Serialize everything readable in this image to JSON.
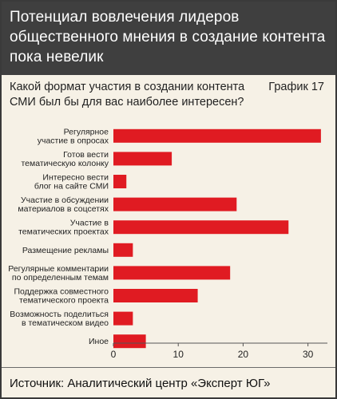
{
  "header": {
    "title": "Потенциал вовлечения лидеров общественного мнения в создание контента пока невелик"
  },
  "question": "Какой формат участия в создании контента СМИ был бы для вас наиболее интересен?",
  "chart_label": "График 17",
  "source": "Источник: Аналитический центр «Эксперт ЮГ»",
  "colors": {
    "bar": "#e01b22",
    "header_bg": "#3f3f3f",
    "panel_bg": "#f6f1e6"
  },
  "chart_data": {
    "type": "bar",
    "orientation": "horizontal",
    "categories": [
      [
        "Регулярное",
        "участие в опросах"
      ],
      [
        "Готов вести",
        "тематическую колонку"
      ],
      [
        "Интересно вести",
        "блог на сайте СМИ"
      ],
      [
        "Участие в обсуждении",
        "материалов в соцсетях"
      ],
      [
        "Участие в",
        "тематических проектах"
      ],
      [
        "Размещение рекламы"
      ],
      [
        "Регулярные комментарии",
        "по определенным темам"
      ],
      [
        "Поддержка совместного",
        "тематического проекта"
      ],
      [
        "Возможность поделиться",
        "в тематическом видео"
      ],
      [
        "Иное"
      ]
    ],
    "values": [
      32,
      9,
      2,
      19,
      27,
      3,
      18,
      13,
      3,
      5
    ],
    "xlim": [
      0,
      33
    ],
    "xticks": [
      0,
      10,
      20,
      30
    ],
    "grid": false,
    "legend": "none"
  }
}
